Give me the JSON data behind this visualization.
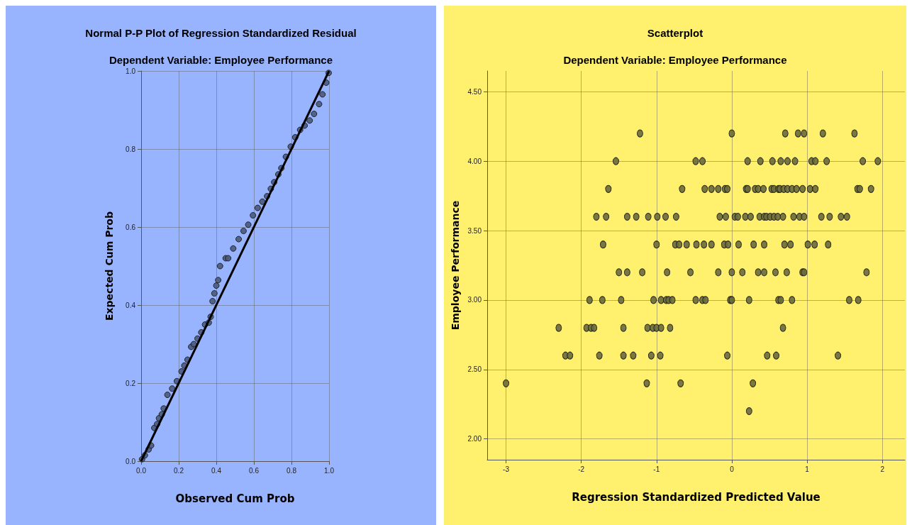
{
  "chart_data": [
    {
      "type": "scatter",
      "title": "Normal P-P Plot of Regression Standardized Residual",
      "subtitle": "Dependent Variable: Employee Performance",
      "xlabel": "Observed Cum Prob",
      "ylabel": "Expected Cum Prob",
      "xlim": [
        0,
        1
      ],
      "ylim": [
        0,
        1
      ],
      "xticks": [
        {
          "value": 0,
          "label": "0.0"
        },
        {
          "value": 0.2,
          "label": "0.2"
        },
        {
          "value": 0.4,
          "label": "0.4"
        },
        {
          "value": 0.6,
          "label": "0.6"
        },
        {
          "value": 0.8,
          "label": "0.8"
        },
        {
          "value": 1,
          "label": "1.0"
        }
      ],
      "yticks": [
        {
          "value": 0,
          "label": "0.0"
        },
        {
          "value": 0.2,
          "label": "0.2"
        },
        {
          "value": 0.4,
          "label": "0.4"
        },
        {
          "value": 0.6,
          "label": "0.6"
        },
        {
          "value": 0.8,
          "label": "0.8"
        },
        {
          "value": 1,
          "label": "1.0"
        }
      ],
      "grid": true,
      "marker": "circle",
      "line_style": "solid",
      "series": [
        {
          "type": "scatter",
          "color": "#4a5a7e",
          "x": [
            0.005,
            0.02,
            0.04,
            0.053,
            0.07,
            0.085,
            0.095,
            0.11,
            0.12,
            0.14,
            0.165,
            0.19,
            0.215,
            0.23,
            0.247,
            0.266,
            0.28,
            0.3,
            0.32,
            0.34,
            0.36,
            0.37,
            0.38,
            0.39,
            0.4,
            0.41,
            0.42,
            0.45,
            0.463,
            0.49,
            0.519,
            0.545,
            0.57,
            0.595,
            0.62,
            0.645,
            0.67,
            0.69,
            0.708,
            0.73,
            0.746,
            0.77,
            0.796,
            0.82,
            0.846,
            0.87,
            0.897,
            0.92,
            0.947,
            0.965,
            0.985,
            0.998
          ],
          "values": [
            0.005,
            0.015,
            0.03,
            0.04,
            0.085,
            0.095,
            0.11,
            0.12,
            0.135,
            0.17,
            0.186,
            0.205,
            0.23,
            0.245,
            0.26,
            0.293,
            0.3,
            0.314,
            0.33,
            0.35,
            0.355,
            0.37,
            0.41,
            0.43,
            0.45,
            0.464,
            0.5,
            0.52,
            0.52,
            0.545,
            0.569,
            0.59,
            0.606,
            0.63,
            0.649,
            0.665,
            0.679,
            0.698,
            0.715,
            0.735,
            0.751,
            0.78,
            0.806,
            0.83,
            0.849,
            0.86,
            0.873,
            0.89,
            0.915,
            0.94,
            0.97,
            0.995
          ]
        },
        {
          "type": "line",
          "color": "#000000",
          "marker": "none",
          "x": [
            0,
            1
          ],
          "values": [
            0,
            1
          ]
        }
      ]
    },
    {
      "type": "scatter",
      "title": "Scatterplot",
      "subtitle": "Dependent Variable: Employee Performance",
      "xlabel": "Regression Standardized Predicted Value",
      "ylabel": "Employee Performance",
      "xlim": [
        -3.25,
        2.3
      ],
      "ylim": [
        1.85,
        4.65
      ],
      "xticks": [
        -3,
        -2,
        -1,
        0,
        1,
        2
      ],
      "yticks": [
        {
          "value": 2,
          "label": "2.00"
        },
        {
          "value": 2.5,
          "label": "2.50"
        },
        {
          "value": 3,
          "label": "3.00"
        },
        {
          "value": 3.5,
          "label": "3.50"
        },
        {
          "value": 4,
          "label": "4.00"
        },
        {
          "value": 4.5,
          "label": "4.50"
        }
      ],
      "grid": true,
      "marker": "circle",
      "series": [
        {
          "type": "scatter",
          "color": "#6b6a3c",
          "x": [
            -1.22,
            0.0,
            0.71,
            0.88,
            0.96,
            1.21,
            1.63,
            -1.54,
            -0.48,
            -0.39,
            0.21,
            0.38,
            0.54,
            0.65,
            0.74,
            0.84,
            1.06,
            1.11,
            1.26,
            1.74,
            1.94,
            -1.64,
            -0.66,
            -0.36,
            -0.27,
            -0.18,
            -0.09,
            -0.06,
            0.19,
            0.21,
            0.31,
            0.35,
            0.42,
            0.53,
            0.56,
            0.62,
            0.64,
            0.69,
            0.74,
            0.8,
            0.86,
            0.94,
            1.04,
            1.11,
            1.67,
            1.7,
            1.85,
            -1.8,
            -1.67,
            -1.39,
            -1.27,
            -1.11,
            -0.99,
            -0.88,
            -0.74,
            -0.16,
            -0.08,
            0.04,
            0.08,
            0.18,
            0.25,
            0.37,
            0.43,
            0.46,
            0.51,
            0.56,
            0.61,
            0.68,
            0.82,
            0.9,
            0.96,
            1.19,
            1.3,
            1.45,
            1.53,
            -1.71,
            -1.0,
            -0.75,
            -0.7,
            -0.6,
            -0.47,
            -0.37,
            -0.27,
            -0.1,
            -0.05,
            0.09,
            0.29,
            0.43,
            0.7,
            0.78,
            1.01,
            1.1,
            1.28,
            -1.5,
            -1.39,
            -1.19,
            -0.86,
            -0.55,
            -0.18,
            0.0,
            0.14,
            0.35,
            0.43,
            0.58,
            0.73,
            0.94,
            0.96,
            1.79,
            -1.89,
            -1.72,
            -1.47,
            -1.04,
            -0.94,
            -0.87,
            -0.84,
            -0.79,
            -0.48,
            -0.39,
            -0.35,
            -0.02,
            0.0,
            0.23,
            0.62,
            0.65,
            0.8,
            1.56,
            1.68,
            -2.3,
            -1.93,
            -1.87,
            -1.83,
            -1.44,
            -1.12,
            -1.05,
            -1.0,
            -0.94,
            -0.82,
            0.68,
            -2.21,
            -2.15,
            -1.76,
            -1.44,
            -1.31,
            -1.07,
            -0.95,
            -0.06,
            0.47,
            0.59,
            1.41,
            -3.0,
            -1.13,
            -0.68,
            0.28,
            0.23
          ],
          "values": [
            4.2,
            4.2,
            4.2,
            4.2,
            4.2,
            4.2,
            4.2,
            4.0,
            4.0,
            4.0,
            4.0,
            4.0,
            4.0,
            4.0,
            4.0,
            4.0,
            4.0,
            4.0,
            4.0,
            4.0,
            4.0,
            3.8,
            3.8,
            3.8,
            3.8,
            3.8,
            3.8,
            3.8,
            3.8,
            3.8,
            3.8,
            3.8,
            3.8,
            3.8,
            3.8,
            3.8,
            3.8,
            3.8,
            3.8,
            3.8,
            3.8,
            3.8,
            3.8,
            3.8,
            3.8,
            3.8,
            3.8,
            3.6,
            3.6,
            3.6,
            3.6,
            3.6,
            3.6,
            3.6,
            3.6,
            3.6,
            3.6,
            3.6,
            3.6,
            3.6,
            3.6,
            3.6,
            3.6,
            3.6,
            3.6,
            3.6,
            3.6,
            3.6,
            3.6,
            3.6,
            3.6,
            3.6,
            3.6,
            3.6,
            3.6,
            3.4,
            3.4,
            3.4,
            3.4,
            3.4,
            3.4,
            3.4,
            3.4,
            3.4,
            3.4,
            3.4,
            3.4,
            3.4,
            3.4,
            3.4,
            3.4,
            3.4,
            3.4,
            3.2,
            3.2,
            3.2,
            3.2,
            3.2,
            3.2,
            3.2,
            3.2,
            3.2,
            3.2,
            3.2,
            3.2,
            3.2,
            3.2,
            3.2,
            3.0,
            3.0,
            3.0,
            3.0,
            3.0,
            3.0,
            3.0,
            3.0,
            3.0,
            3.0,
            3.0,
            3.0,
            3.0,
            3.0,
            3.0,
            3.0,
            3.0,
            3.0,
            3.0,
            2.8,
            2.8,
            2.8,
            2.8,
            2.8,
            2.8,
            2.8,
            2.8,
            2.8,
            2.8,
            2.8,
            2.6,
            2.6,
            2.6,
            2.6,
            2.6,
            2.6,
            2.6,
            2.6,
            2.6,
            2.6,
            2.6,
            2.4,
            2.4,
            2.4,
            2.4,
            2.2
          ]
        }
      ]
    }
  ]
}
